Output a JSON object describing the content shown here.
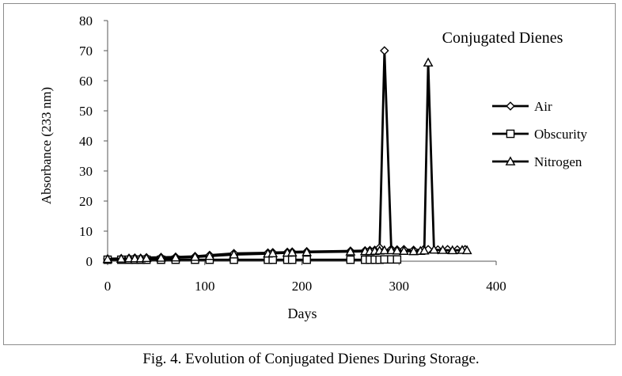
{
  "caption": "Fig. 4. Evolution of Conjugated Dienes During Storage.",
  "chart_data": {
    "type": "line",
    "title": "Conjugated Dienes",
    "xlabel": "Days",
    "ylabel": "Absorbance (233 nm)",
    "xlim": [
      0,
      400
    ],
    "ylim": [
      0,
      80
    ],
    "xticks": [
      0,
      100,
      200,
      300,
      400
    ],
    "yticks": [
      0,
      10,
      20,
      30,
      40,
      50,
      60,
      70,
      80
    ],
    "grid": false,
    "legend_position": "right",
    "series": [
      {
        "name": "Air",
        "marker": "diamond",
        "x": [
          0,
          14,
          22,
          28,
          34,
          40,
          55,
          70,
          90,
          105,
          130,
          165,
          170,
          185,
          190,
          205,
          250,
          265,
          270,
          275,
          280,
          285,
          292,
          298,
          305,
          315,
          325,
          330,
          340,
          350,
          360,
          368
        ],
        "y": [
          0.8,
          0.9,
          1.0,
          1.1,
          1.0,
          1.2,
          1.3,
          1.4,
          1.6,
          2.0,
          2.6,
          2.8,
          2.9,
          3.0,
          3.1,
          3.2,
          3.4,
          3.5,
          3.6,
          3.7,
          4.5,
          70,
          4.0,
          3.8,
          3.9,
          3.7,
          3.8,
          3.9,
          3.8,
          3.9,
          3.8,
          3.9
        ]
      },
      {
        "name": "Obscurity",
        "marker": "square",
        "x": [
          0,
          14,
          22,
          28,
          34,
          40,
          55,
          70,
          90,
          105,
          130,
          165,
          170,
          185,
          190,
          205,
          250,
          265,
          270,
          275,
          280,
          285,
          292,
          298
        ],
        "y": [
          0.5,
          0.5,
          0.5,
          0.5,
          0.5,
          0.5,
          0.5,
          0.5,
          0.5,
          0.5,
          0.5,
          0.5,
          0.5,
          0.5,
          0.5,
          0.5,
          0.5,
          0.5,
          0.5,
          0.5,
          0.5,
          0.6,
          0.6,
          0.6
        ]
      },
      {
        "name": "Nitrogen",
        "marker": "triangle",
        "x": [
          0,
          14,
          22,
          28,
          34,
          40,
          55,
          70,
          90,
          105,
          130,
          165,
          170,
          185,
          190,
          205,
          250,
          265,
          270,
          275,
          280,
          285,
          292,
          298,
          305,
          315,
          322,
          326,
          330,
          336,
          345,
          355,
          365,
          370
        ],
        "y": [
          0.7,
          0.8,
          0.9,
          0.9,
          0.9,
          1.0,
          1.1,
          1.2,
          1.4,
          1.7,
          2.2,
          2.5,
          2.6,
          2.8,
          2.9,
          3.0,
          3.2,
          3.3,
          3.3,
          3.4,
          3.5,
          3.6,
          3.6,
          3.5,
          3.4,
          3.3,
          3.4,
          3.5,
          66,
          3.8,
          3.7,
          3.6,
          3.7,
          3.6
        ]
      }
    ]
  }
}
